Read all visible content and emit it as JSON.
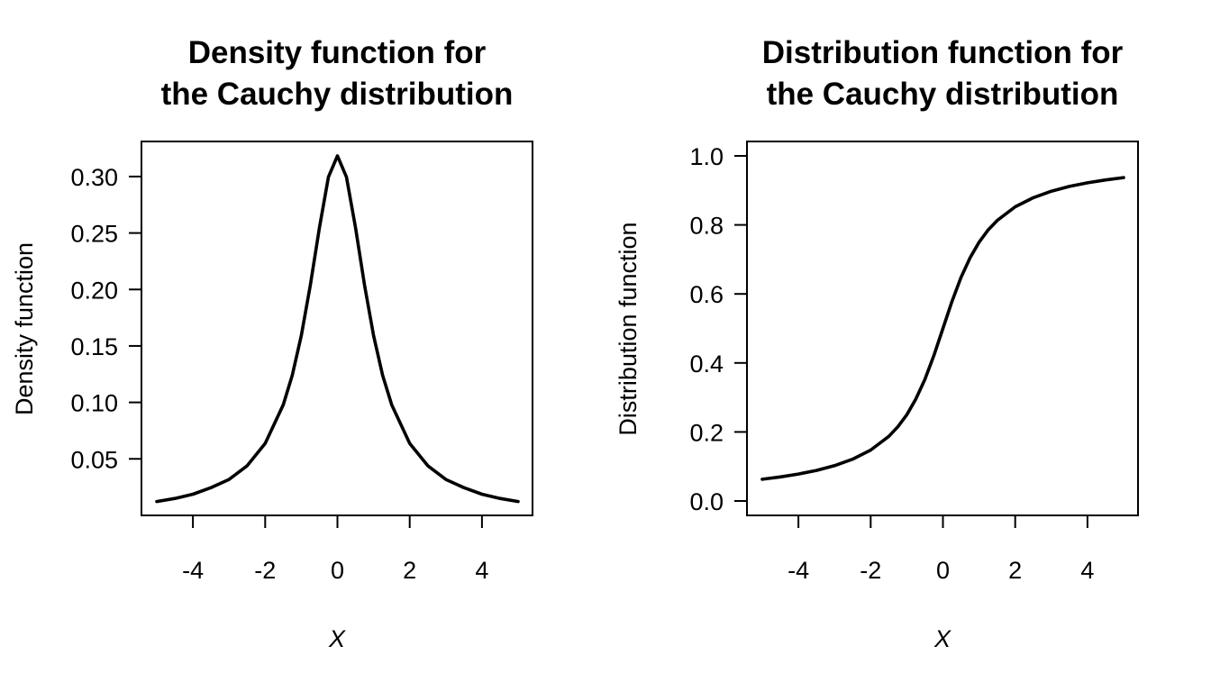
{
  "chart_data": [
    {
      "type": "line",
      "title_lines": [
        "Density function for",
        "the Cauchy distribution"
      ],
      "xlabel": "X",
      "ylabel": "Density function",
      "xlim": [
        -5,
        5
      ],
      "ylim": [
        0.0127,
        0.3183
      ],
      "x_ticks": [
        -4,
        -2,
        0,
        2,
        4
      ],
      "x_tick_labels": [
        "-4",
        "-2",
        "0",
        "2",
        "4"
      ],
      "y_ticks": [
        0.05,
        0.1,
        0.15,
        0.2,
        0.25,
        0.3
      ],
      "y_tick_labels": [
        "0.05",
        "0.10",
        "0.15",
        "0.20",
        "0.25",
        "0.30"
      ],
      "grid": false,
      "series": [
        {
          "x": [
            -5,
            -4.5,
            -4,
            -3.5,
            -3,
            -2.5,
            -2,
            -1.5,
            -1.25,
            -1,
            -0.75,
            -0.5,
            -0.25,
            0,
            0.25,
            0.5,
            0.75,
            1,
            1.25,
            1.5,
            2,
            2.5,
            3,
            3.5,
            4,
            4.5,
            5
          ],
          "y": [
            0.0122,
            0.0149,
            0.0187,
            0.0245,
            0.0318,
            0.0439,
            0.0637,
            0.0979,
            0.1241,
            0.1592,
            0.2037,
            0.2546,
            0.2996,
            0.3183,
            0.2996,
            0.2546,
            0.2037,
            0.1592,
            0.1241,
            0.0979,
            0.0637,
            0.0439,
            0.0318,
            0.0245,
            0.0187,
            0.0149,
            0.0122
          ]
        }
      ]
    },
    {
      "type": "line",
      "title_lines": [
        "Distribution function for",
        "the Cauchy distribution"
      ],
      "xlabel": "X",
      "ylabel": "Distribution function",
      "xlim": [
        -5,
        5
      ],
      "ylim": [
        0.0,
        1.0
      ],
      "x_ticks": [
        -4,
        -2,
        0,
        2,
        4
      ],
      "x_tick_labels": [
        "-4",
        "-2",
        "0",
        "2",
        "4"
      ],
      "y_ticks": [
        0.0,
        0.2,
        0.4,
        0.6,
        0.8,
        1.0
      ],
      "y_tick_labels": [
        "0.0",
        "0.2",
        "0.4",
        "0.6",
        "0.8",
        "1.0"
      ],
      "grid": false,
      "series": [
        {
          "x": [
            -5,
            -4.5,
            -4,
            -3.5,
            -3,
            -2.5,
            -2,
            -1.5,
            -1.25,
            -1,
            -0.75,
            -0.5,
            -0.25,
            0,
            0.25,
            0.5,
            0.75,
            1,
            1.25,
            1.5,
            2,
            2.5,
            3,
            3.5,
            4,
            4.5,
            5
          ],
          "y": [
            0.063,
            0.0698,
            0.078,
            0.0886,
            0.1024,
            0.1211,
            0.1476,
            0.1872,
            0.2148,
            0.25,
            0.2952,
            0.3524,
            0.422,
            0.5,
            0.578,
            0.6476,
            0.7048,
            0.75,
            0.7852,
            0.8128,
            0.8524,
            0.8789,
            0.8976,
            0.9114,
            0.922,
            0.9302,
            0.937
          ]
        }
      ]
    }
  ]
}
